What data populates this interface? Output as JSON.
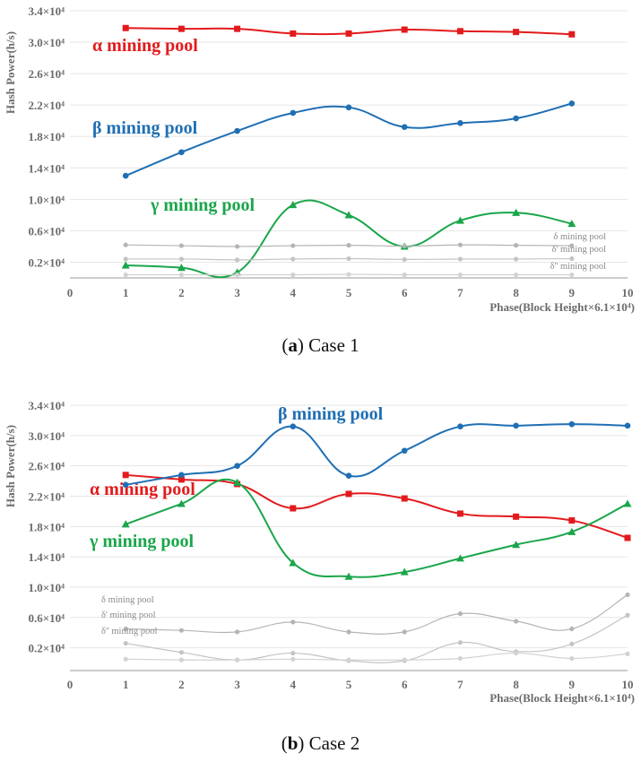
{
  "captions": [
    {
      "letter": "a",
      "text": "Case 1"
    },
    {
      "letter": "b",
      "text": "Case 2"
    }
  ],
  "colors": {
    "alpha": "#e31a1c",
    "beta": "#1f6fb4",
    "gamma": "#1aa64a",
    "delta": "#b4b4b4",
    "delta1": "#c4c4c4",
    "delta2": "#d2d2d2",
    "axis": "#9a9a9a"
  },
  "chart_data": [
    {
      "type": "line",
      "title": "",
      "ylabel": "Hash Power(h/s)",
      "xlabel": "Phase(Block Height×6.1×10⁴)",
      "xlim": [
        0,
        10
      ],
      "ylim": [
        0,
        34000
      ],
      "x_ticks": [
        0,
        1,
        2,
        3,
        4,
        5,
        6,
        7,
        8,
        9,
        10
      ],
      "y_ticks": [
        2000,
        6000,
        10000,
        14000,
        18000,
        22000,
        26000,
        30000,
        34000
      ],
      "y_tick_labels": [
        "0.2×10⁴",
        "0.6×10⁴",
        "1.0×10⁴",
        "1.4×10⁴",
        "1.8×10⁴",
        "2.2×10⁴",
        "2.6×10⁴",
        "3.0×10⁴",
        "3.4×10⁴"
      ],
      "grid": true,
      "series": [
        {
          "name": "α mining pool",
          "color": "#e31a1c",
          "marker": "square",
          "major": true,
          "x": [
            1,
            2,
            3,
            4,
            5,
            6,
            7,
            8,
            9
          ],
          "values": [
            31800,
            31700,
            31700,
            31100,
            31100,
            31600,
            31400,
            31300,
            31000
          ]
        },
        {
          "name": "β mining pool",
          "color": "#1f6fb4",
          "marker": "circle",
          "major": true,
          "x": [
            1,
            2,
            3,
            4,
            5,
            6,
            7,
            8,
            9
          ],
          "values": [
            13000,
            16000,
            18700,
            21000,
            21700,
            19200,
            19700,
            20300,
            22200
          ]
        },
        {
          "name": "γ mining pool",
          "color": "#1aa64a",
          "marker": "triangle",
          "major": true,
          "x": [
            1,
            2,
            3,
            4,
            5,
            6,
            7,
            8,
            9
          ],
          "values": [
            1600,
            1300,
            700,
            9300,
            8000,
            4000,
            7300,
            8300,
            6900
          ]
        },
        {
          "name": "δ mining pool",
          "color": "#b4b4b4",
          "marker": "circle",
          "major": false,
          "x": [
            1,
            2,
            3,
            4,
            5,
            6,
            7,
            8,
            9
          ],
          "values": [
            4200,
            4100,
            4000,
            4100,
            4150,
            4050,
            4200,
            4150,
            4100
          ]
        },
        {
          "name": "δ' mining pool",
          "color": "#c4c4c4",
          "marker": "circle",
          "major": false,
          "x": [
            1,
            2,
            3,
            4,
            5,
            6,
            7,
            8,
            9
          ],
          "values": [
            2400,
            2400,
            2300,
            2400,
            2450,
            2350,
            2400,
            2400,
            2450
          ]
        },
        {
          "name": "δ'' mining pool",
          "color": "#d2d2d2",
          "marker": "circle",
          "major": false,
          "x": [
            1,
            2,
            3,
            4,
            5,
            6,
            7,
            8,
            9
          ],
          "values": [
            400,
            400,
            400,
            400,
            450,
            400,
            400,
            400,
            400
          ]
        }
      ]
    },
    {
      "type": "line",
      "title": "",
      "ylabel": "Hash Power(h/s)",
      "xlabel": "Phase(Block Height×6.1×10⁴)",
      "xlim": [
        0,
        10
      ],
      "ylim": [
        -1000,
        34000
      ],
      "x_ticks": [
        0,
        1,
        2,
        3,
        4,
        5,
        6,
        7,
        8,
        9,
        10
      ],
      "y_ticks": [
        2000,
        6000,
        10000,
        14000,
        18000,
        22000,
        26000,
        30000,
        34000
      ],
      "y_tick_labels": [
        "0.2×10⁴",
        "0.6×10⁴",
        "1.0×10⁴",
        "1.4×10⁴",
        "1.8×10⁴",
        "2.2×10⁴",
        "2.6×10⁴",
        "3.0×10⁴",
        "3.4×10⁴"
      ],
      "grid": true,
      "series": [
        {
          "name": "α mining pool",
          "color": "#e31a1c",
          "marker": "square",
          "major": true,
          "x": [
            1,
            2,
            3,
            4,
            5,
            6,
            7,
            8,
            9,
            10
          ],
          "values": [
            24800,
            24200,
            23600,
            20400,
            22300,
            21700,
            19700,
            19300,
            18800,
            16500
          ]
        },
        {
          "name": "β mining pool",
          "color": "#1f6fb4",
          "marker": "circle",
          "major": true,
          "x": [
            1,
            2,
            3,
            4,
            5,
            6,
            7,
            8,
            9,
            10
          ],
          "values": [
            23500,
            24800,
            26000,
            31200,
            24700,
            28000,
            31200,
            31300,
            31500,
            31300
          ]
        },
        {
          "name": "γ mining pool",
          "color": "#1aa64a",
          "marker": "triangle",
          "major": true,
          "x": [
            1,
            2,
            3,
            4,
            5,
            6,
            7,
            8,
            9,
            10
          ],
          "values": [
            18300,
            21000,
            23800,
            13200,
            11400,
            12000,
            13800,
            15600,
            17300,
            21000
          ]
        },
        {
          "name": "δ mining pool",
          "color": "#b4b4b4",
          "marker": "circle",
          "major": false,
          "x": [
            1,
            2,
            3,
            4,
            5,
            6,
            7,
            8,
            9,
            10
          ],
          "values": [
            4500,
            4300,
            4100,
            5400,
            4100,
            4100,
            6500,
            5500,
            4500,
            9000
          ]
        },
        {
          "name": "δ' mining pool",
          "color": "#c4c4c4",
          "marker": "circle",
          "major": false,
          "x": [
            1,
            2,
            3,
            4,
            5,
            6,
            7,
            8,
            9,
            10
          ],
          "values": [
            2600,
            1400,
            400,
            1300,
            300,
            300,
            2700,
            1500,
            2500,
            6300
          ]
        },
        {
          "name": "δ'' mining pool",
          "color": "#d2d2d2",
          "marker": "circle",
          "major": false,
          "x": [
            1,
            2,
            3,
            4,
            5,
            6,
            7,
            8,
            9,
            10
          ],
          "values": [
            500,
            400,
            400,
            500,
            400,
            400,
            600,
            1300,
            600,
            1200
          ]
        }
      ]
    }
  ]
}
